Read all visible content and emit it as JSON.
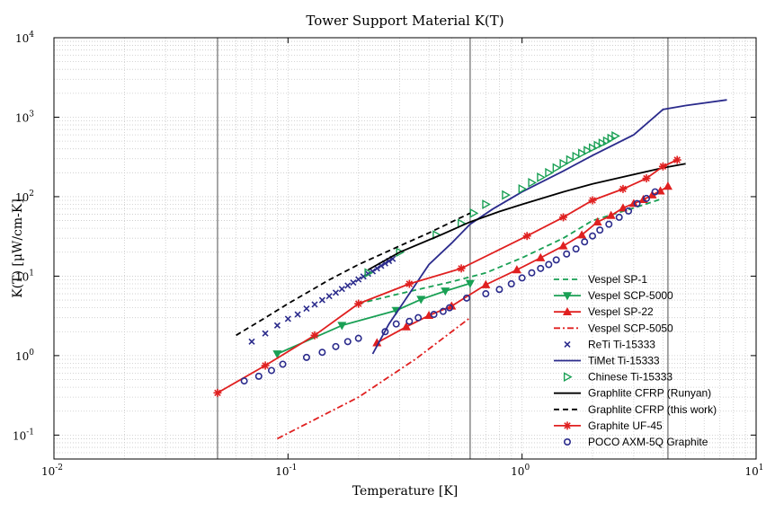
{
  "chart_data": {
    "type": "line",
    "title": "Tower Support Material K(T)",
    "xlabel": "Temperature [K]",
    "ylabel": "K(T) [μW/cm-K]",
    "xscale": "log",
    "yscale": "log",
    "xlim": [
      0.01,
      10
    ],
    "ylim": [
      0.05,
      10000
    ],
    "grid": true,
    "legend_position": "bottom-right",
    "x_tick_labels": [
      {
        "base": "10",
        "exp": "-2",
        "value": 0.01
      },
      {
        "base": "10",
        "exp": "-1",
        "value": 0.1
      },
      {
        "base": "10",
        "exp": "0",
        "value": 1
      },
      {
        "base": "10",
        "exp": "1",
        "value": 10
      }
    ],
    "y_tick_labels": [
      {
        "base": "10",
        "exp": "-1",
        "value": 0.1
      },
      {
        "base": "10",
        "exp": "0",
        "value": 1
      },
      {
        "base": "10",
        "exp": "1",
        "value": 10
      },
      {
        "base": "10",
        "exp": "2",
        "value": 100
      },
      {
        "base": "10",
        "exp": "3",
        "value": 1000
      },
      {
        "base": "10",
        "exp": "4",
        "value": 10000
      }
    ],
    "reference_lines_x": [
      0.05,
      0.6,
      4.2
    ],
    "series": [
      {
        "name": "Vespel SP-1",
        "color": "#1aa055",
        "style": "dashed",
        "marker": "none",
        "points": [
          [
            0.2,
            4.5
          ],
          [
            0.3,
            6
          ],
          [
            0.5,
            8.5
          ],
          [
            0.7,
            11
          ],
          [
            1,
            17
          ],
          [
            1.5,
            30
          ],
          [
            2,
            50
          ],
          [
            3,
            72
          ],
          [
            4,
            95
          ]
        ]
      },
      {
        "name": "Vespel SCP-5000",
        "color": "#1aa055",
        "style": "solid",
        "marker": "triangle-down",
        "points": [
          [
            0.09,
            1.05
          ],
          [
            0.17,
            2.4
          ],
          [
            0.29,
            3.7
          ],
          [
            0.37,
            5.1
          ],
          [
            0.47,
            6.5
          ],
          [
            0.6,
            8.1
          ]
        ]
      },
      {
        "name": "Vespel SP-22",
        "color": "#e02020",
        "style": "solid",
        "marker": "triangle-up",
        "points": [
          [
            0.24,
            1.45
          ],
          [
            0.32,
            2.3
          ],
          [
            0.4,
            3.2
          ],
          [
            0.5,
            4.2
          ],
          [
            0.7,
            7.8
          ],
          [
            0.95,
            12
          ],
          [
            1.2,
            17
          ],
          [
            1.5,
            24
          ],
          [
            1.8,
            33
          ],
          [
            2.1,
            48
          ],
          [
            2.4,
            58
          ],
          [
            2.7,
            72
          ],
          [
            3,
            82
          ],
          [
            3.3,
            92
          ],
          [
            3.6,
            105
          ],
          [
            3.9,
            118
          ],
          [
            4.2,
            135
          ]
        ]
      },
      {
        "name": "Vespel SCP-5050",
        "color": "#e02020",
        "style": "dashdot",
        "marker": "none",
        "points": [
          [
            0.09,
            0.09
          ],
          [
            0.2,
            0.3
          ],
          [
            0.35,
            0.9
          ],
          [
            0.6,
            3
          ]
        ]
      },
      {
        "name": "ReTi Ti-15333",
        "color": "#2b2b8c",
        "style": "none",
        "marker": "x",
        "points": [
          [
            0.07,
            1.5
          ],
          [
            0.08,
            1.9
          ],
          [
            0.09,
            2.4
          ],
          [
            0.1,
            2.9
          ],
          [
            0.11,
            3.3
          ],
          [
            0.12,
            3.9
          ],
          [
            0.13,
            4.4
          ],
          [
            0.14,
            5
          ],
          [
            0.15,
            5.6
          ],
          [
            0.16,
            6.2
          ],
          [
            0.17,
            6.9
          ],
          [
            0.18,
            7.6
          ],
          [
            0.19,
            8.3
          ],
          [
            0.2,
            9.1
          ],
          [
            0.21,
            9.9
          ],
          [
            0.22,
            10.7
          ],
          [
            0.23,
            11.5
          ],
          [
            0.24,
            12.5
          ],
          [
            0.25,
            13.5
          ],
          [
            0.26,
            14.5
          ],
          [
            0.27,
            15.5
          ],
          [
            0.28,
            16.5
          ]
        ]
      },
      {
        "name": "TiMet Ti-15333",
        "color": "#2b2b8c",
        "style": "solid",
        "marker": "none",
        "points": [
          [
            0.23,
            1.05
          ],
          [
            0.27,
            2.5
          ],
          [
            0.33,
            6
          ],
          [
            0.4,
            14
          ],
          [
            0.5,
            26
          ],
          [
            0.6,
            45
          ],
          [
            0.75,
            70
          ],
          [
            1,
            115
          ],
          [
            1.5,
            210
          ],
          [
            2,
            330
          ],
          [
            3,
            600
          ],
          [
            4,
            1250
          ],
          [
            5,
            1400
          ],
          [
            7.5,
            1650
          ]
        ]
      },
      {
        "name": "Chinese Ti-15333",
        "color": "#1aa055",
        "style": "none",
        "marker": "triangle-right",
        "points": [
          [
            0.22,
            11
          ],
          [
            0.3,
            20
          ],
          [
            0.43,
            33
          ],
          [
            0.55,
            46
          ],
          [
            0.62,
            62
          ],
          [
            0.7,
            80
          ],
          [
            0.85,
            105
          ],
          [
            1,
            125
          ],
          [
            1.1,
            150
          ],
          [
            1.2,
            175
          ],
          [
            1.3,
            200
          ],
          [
            1.4,
            230
          ],
          [
            1.5,
            260
          ],
          [
            1.6,
            290
          ],
          [
            1.7,
            320
          ],
          [
            1.8,
            350
          ],
          [
            1.9,
            380
          ],
          [
            2,
            410
          ],
          [
            2.1,
            440
          ],
          [
            2.2,
            470
          ],
          [
            2.3,
            500
          ],
          [
            2.4,
            540
          ],
          [
            2.5,
            580
          ]
        ]
      },
      {
        "name": "Graphlite CFRP (Runyan)",
        "color": "#000000",
        "style": "solid",
        "marker": "none",
        "points": [
          [
            0.22,
            12
          ],
          [
            0.3,
            20
          ],
          [
            0.45,
            33
          ],
          [
            0.6,
            48
          ],
          [
            0.8,
            65
          ],
          [
            1,
            80
          ],
          [
            1.5,
            115
          ],
          [
            2,
            145
          ],
          [
            3,
            190
          ],
          [
            4,
            230
          ],
          [
            5,
            260
          ]
        ]
      },
      {
        "name": "Graphlite CFRP (this work)",
        "color": "#000000",
        "style": "dashed",
        "marker": "none",
        "points": [
          [
            0.06,
            1.8
          ],
          [
            0.08,
            3
          ],
          [
            0.1,
            4.5
          ],
          [
            0.15,
            9
          ],
          [
            0.2,
            14
          ],
          [
            0.3,
            24
          ],
          [
            0.4,
            35
          ],
          [
            0.5,
            48
          ],
          [
            0.6,
            62
          ]
        ]
      },
      {
        "name": "Graphite UF-45",
        "color": "#e02020",
        "style": "solid",
        "marker": "asterisk",
        "points": [
          [
            0.05,
            0.34
          ],
          [
            0.08,
            0.75
          ],
          [
            0.13,
            1.8
          ],
          [
            0.2,
            4.5
          ],
          [
            0.33,
            8
          ],
          [
            0.55,
            12.5
          ],
          [
            1.05,
            32
          ],
          [
            1.5,
            55
          ],
          [
            2,
            90
          ],
          [
            2.7,
            125
          ],
          [
            3.4,
            170
          ],
          [
            4,
            240
          ],
          [
            4.6,
            290
          ]
        ]
      },
      {
        "name": "POCO AXM-5Q Graphite",
        "color": "#2b2b8c",
        "style": "none",
        "marker": "circle",
        "points": [
          [
            0.065,
            0.48
          ],
          [
            0.075,
            0.55
          ],
          [
            0.085,
            0.65
          ],
          [
            0.095,
            0.78
          ],
          [
            0.12,
            0.95
          ],
          [
            0.14,
            1.1
          ],
          [
            0.16,
            1.3
          ],
          [
            0.18,
            1.5
          ],
          [
            0.2,
            1.65
          ],
          [
            0.26,
            2
          ],
          [
            0.29,
            2.5
          ],
          [
            0.33,
            2.7
          ],
          [
            0.36,
            3
          ],
          [
            0.42,
            3.3
          ],
          [
            0.46,
            3.6
          ],
          [
            0.49,
            4
          ],
          [
            0.58,
            5.3
          ],
          [
            0.7,
            6
          ],
          [
            0.8,
            6.8
          ],
          [
            0.9,
            8
          ],
          [
            1,
            9.5
          ],
          [
            1.1,
            11
          ],
          [
            1.2,
            12.5
          ],
          [
            1.3,
            14
          ],
          [
            1.4,
            16
          ],
          [
            1.55,
            19
          ],
          [
            1.7,
            22
          ],
          [
            1.85,
            27
          ],
          [
            2,
            32
          ],
          [
            2.15,
            38
          ],
          [
            2.35,
            45
          ],
          [
            2.6,
            55
          ],
          [
            2.85,
            66
          ],
          [
            3.1,
            82
          ],
          [
            3.4,
            95
          ],
          [
            3.7,
            115
          ]
        ]
      }
    ]
  }
}
